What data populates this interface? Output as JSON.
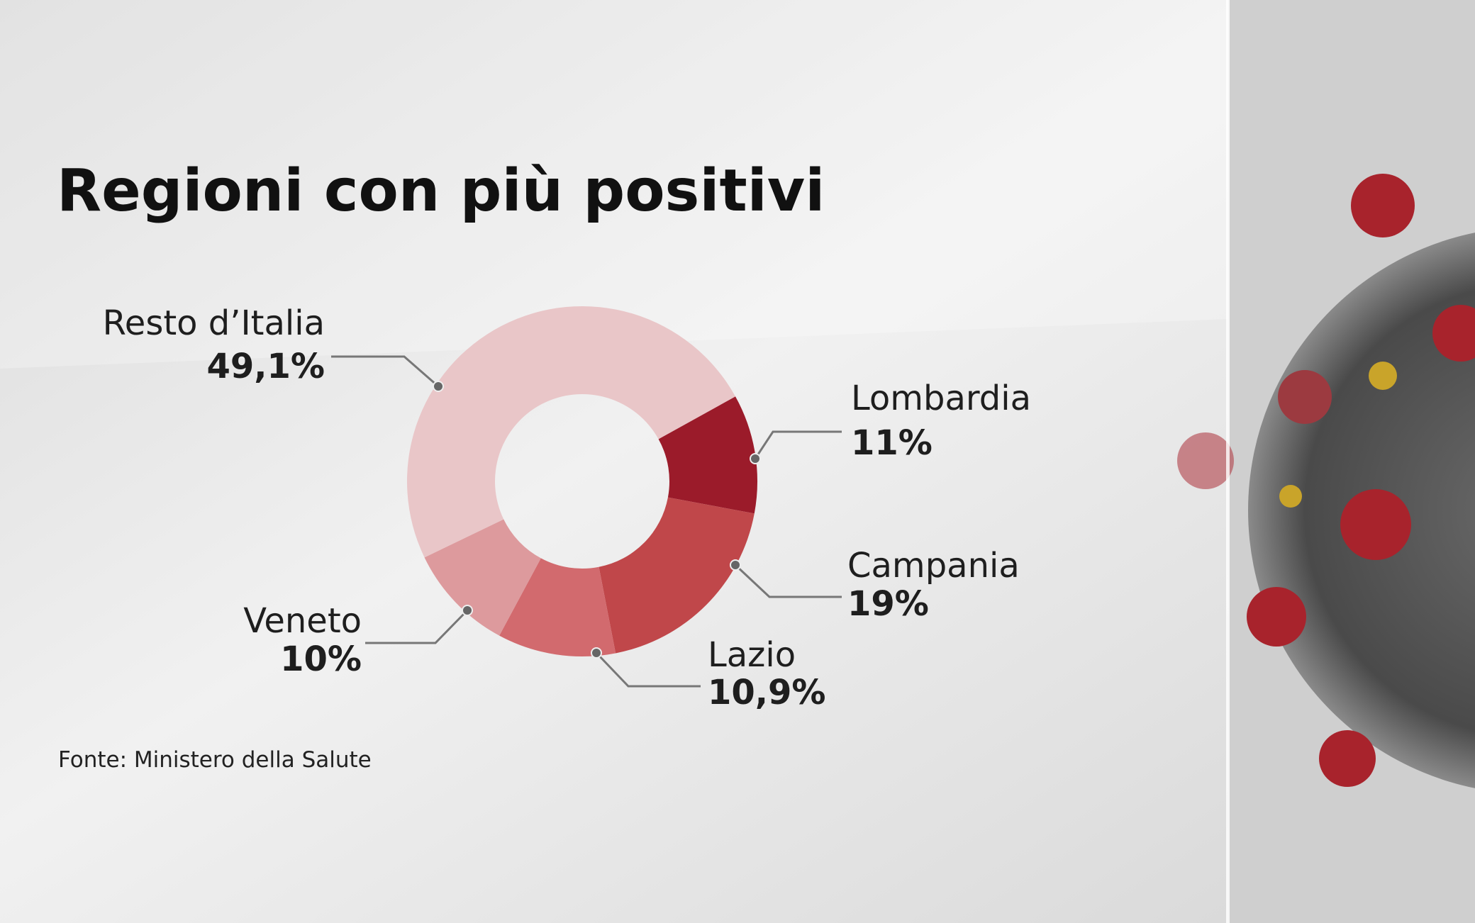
{
  "chart_data": {
    "type": "donut",
    "title": "Regioni con più positivi",
    "source": "Fonte: Ministero della Salute",
    "categories": [
      "Lombardia",
      "Campania",
      "Lazio",
      "Veneto",
      "Resto d’Italia"
    ],
    "values": [
      11,
      19,
      10.9,
      10,
      49.1
    ],
    "value_labels": [
      "11%",
      "19%",
      "10,9%",
      "10%",
      "49,1%"
    ],
    "colors": [
      "#9b1b2a",
      "#c0474a",
      "#d26a6e",
      "#dd9a9d",
      "#e9c6c8"
    ]
  }
}
